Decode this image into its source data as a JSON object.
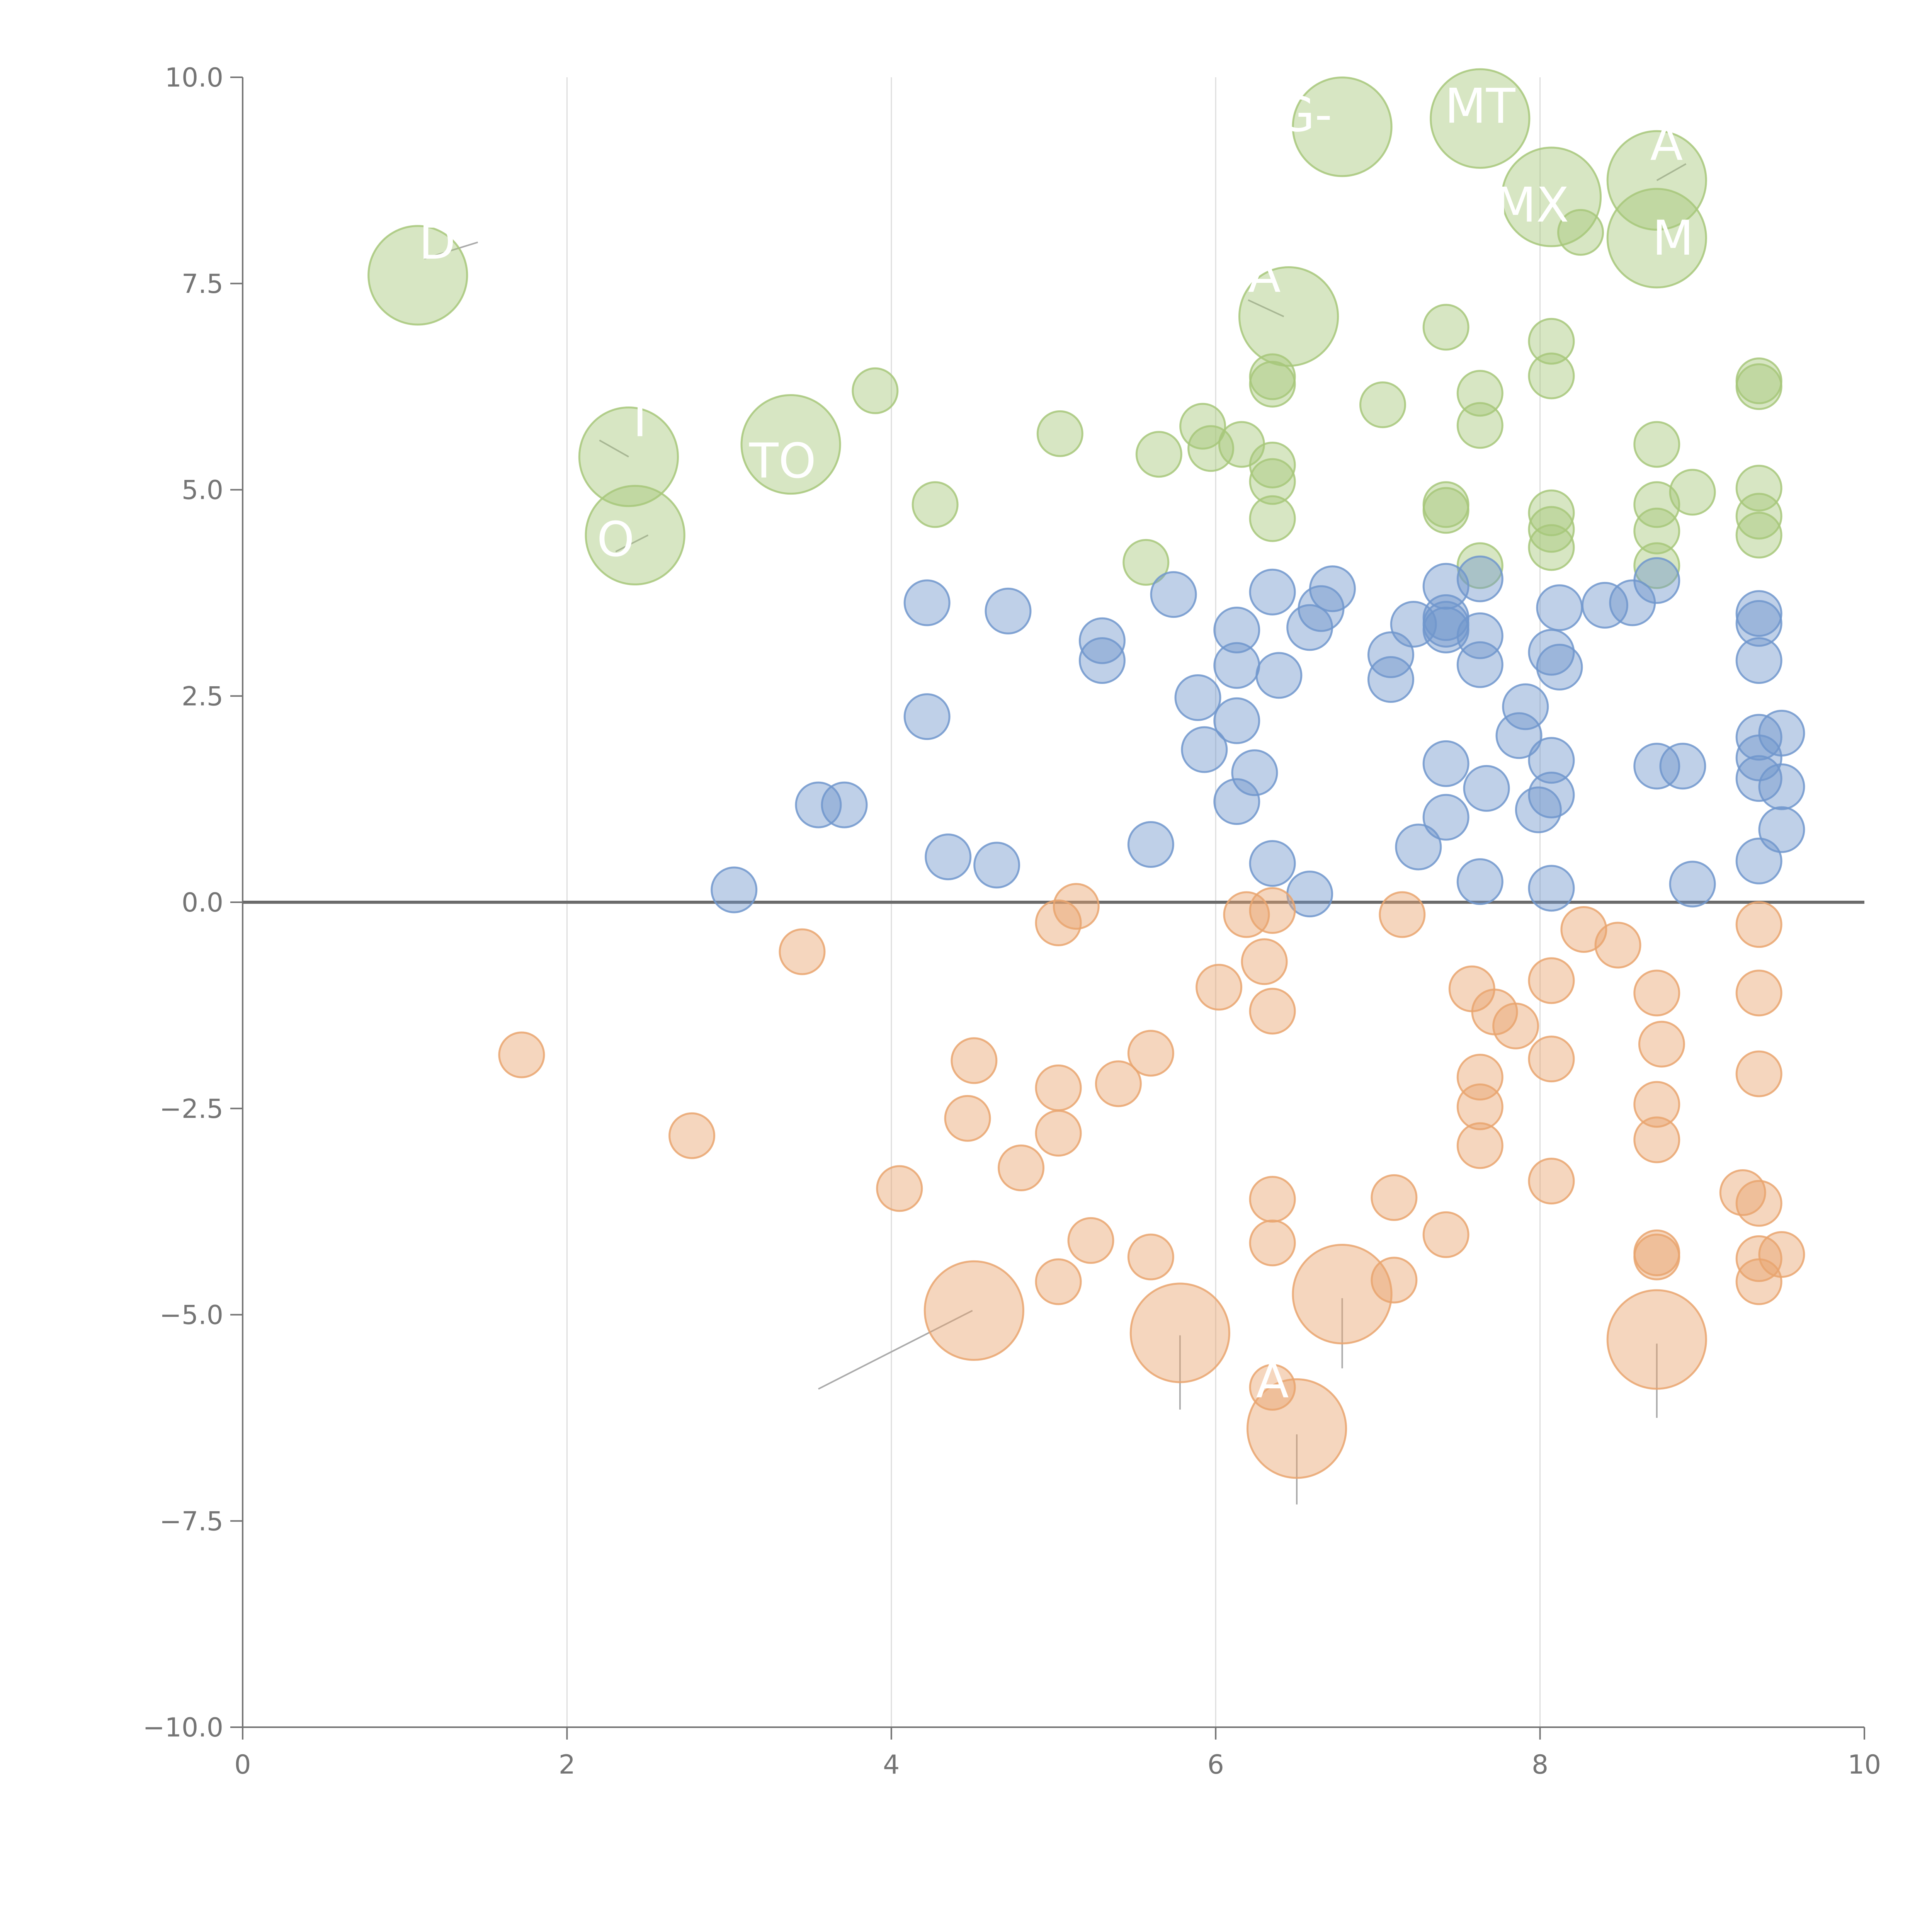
{
  "chart_data": {
    "type": "scatter",
    "title": "",
    "xlabel": "",
    "ylabel": "",
    "xlim": [
      0,
      10
    ],
    "ylim": [
      -10,
      10
    ],
    "xticks": [
      0,
      2,
      4,
      6,
      8,
      10
    ],
    "xtick_labels": [
      "0",
      "2",
      "4",
      "6",
      "8",
      "10"
    ],
    "yticks": [
      10,
      7.5,
      5,
      2.5,
      0,
      -2.5,
      -5,
      -7.5,
      -10
    ],
    "ytick_labels": [
      "10.0",
      "7.5",
      "5.0",
      "2.5",
      "0.0",
      "−2.5",
      "−5.0",
      "−7.5",
      "−10.0"
    ],
    "grid": "vertical",
    "baseline": 0,
    "colors": {
      "high": "#a7c77a",
      "mid": "#7096cc",
      "low": "#e9a46e",
      "grid": "#dddddd",
      "axis": "#757575",
      "baseline": "#6b6b6b",
      "leader": "#aaaaaa",
      "label": "#ffffff"
    },
    "series": [
      {
        "name": "high",
        "color": "#a7c77a",
        "points": [
          [
            1.08,
            7.6,
            2.2
          ],
          [
            2.38,
            5.4,
            2.2
          ],
          [
            2.42,
            4.45,
            2.2
          ],
          [
            3.38,
            5.55,
            2.2
          ],
          [
            6.45,
            7.1,
            2.2
          ],
          [
            6.78,
            9.4,
            2.2
          ],
          [
            7.63,
            9.5,
            2.2
          ],
          [
            8.07,
            8.55,
            2.2
          ],
          [
            8.72,
            8.75,
            2.2
          ],
          [
            8.72,
            8.05,
            2.2
          ],
          [
            3.9,
            6.2,
            1
          ],
          [
            4.27,
            4.82,
            1
          ],
          [
            5.04,
            5.68,
            1
          ],
          [
            5.57,
            4.12,
            1
          ],
          [
            5.65,
            5.43,
            1
          ],
          [
            5.92,
            5.77,
            1
          ],
          [
            5.97,
            5.5,
            1
          ],
          [
            6.16,
            5.55,
            1
          ],
          [
            6.35,
            6.37,
            1
          ],
          [
            6.35,
            6.28,
            1
          ],
          [
            6.35,
            5.3,
            1
          ],
          [
            6.35,
            5.1,
            1
          ],
          [
            6.35,
            4.65,
            1
          ],
          [
            7.03,
            6.03,
            1
          ],
          [
            7.42,
            6.97,
            1
          ],
          [
            7.42,
            4.82,
            1
          ],
          [
            7.42,
            4.75,
            1
          ],
          [
            7.63,
            6.17,
            1
          ],
          [
            7.63,
            5.78,
            1
          ],
          [
            7.63,
            4.08,
            1
          ],
          [
            8.07,
            6.8,
            1
          ],
          [
            8.07,
            6.38,
            1
          ],
          [
            8.07,
            4.72,
            1
          ],
          [
            8.07,
            4.52,
            1
          ],
          [
            8.07,
            4.3,
            1
          ],
          [
            8.25,
            8.12,
            1
          ],
          [
            8.72,
            5.55,
            1
          ],
          [
            8.72,
            4.82,
            1
          ],
          [
            8.72,
            4.5,
            1
          ],
          [
            8.72,
            4.08,
            1
          ],
          [
            8.94,
            4.97,
            1
          ],
          [
            9.35,
            6.32,
            1
          ],
          [
            9.35,
            6.25,
            1
          ],
          [
            9.35,
            5.02,
            1
          ],
          [
            9.35,
            4.68,
            1
          ],
          [
            9.35,
            4.45,
            1
          ]
        ]
      },
      {
        "name": "mid",
        "color": "#7096cc",
        "points": [
          [
            3.03,
            0.15,
            1
          ],
          [
            3.55,
            1.18,
            1
          ],
          [
            3.71,
            1.18,
            1
          ],
          [
            4.22,
            3.63,
            1
          ],
          [
            4.22,
            2.25,
            1
          ],
          [
            4.35,
            0.55,
            1
          ],
          [
            4.65,
            0.45,
            1
          ],
          [
            4.72,
            3.53,
            1
          ],
          [
            5.3,
            3.17,
            1
          ],
          [
            5.3,
            2.93,
            1
          ],
          [
            5.6,
            0.7,
            1
          ],
          [
            5.74,
            3.73,
            1
          ],
          [
            5.89,
            2.48,
            1
          ],
          [
            5.93,
            1.85,
            1
          ],
          [
            6.13,
            3.3,
            1
          ],
          [
            6.13,
            2.87,
            1
          ],
          [
            6.13,
            2.2,
            1
          ],
          [
            6.13,
            1.22,
            1
          ],
          [
            6.24,
            1.57,
            1
          ],
          [
            6.35,
            3.76,
            1
          ],
          [
            6.35,
            0.47,
            1
          ],
          [
            6.39,
            2.75,
            1
          ],
          [
            6.58,
            3.33,
            1
          ],
          [
            6.58,
            0.1,
            1
          ],
          [
            6.65,
            3.56,
            1
          ],
          [
            6.72,
            3.8,
            1
          ],
          [
            7.08,
            3.0,
            1
          ],
          [
            7.08,
            2.7,
            1
          ],
          [
            7.22,
            3.37,
            1
          ],
          [
            7.25,
            0.67,
            1
          ],
          [
            7.42,
            3.83,
            1
          ],
          [
            7.42,
            3.45,
            1
          ],
          [
            7.42,
            3.37,
            1
          ],
          [
            7.42,
            3.3,
            1
          ],
          [
            7.42,
            1.68,
            1
          ],
          [
            7.42,
            1.03,
            1
          ],
          [
            7.63,
            3.92,
            1
          ],
          [
            7.63,
            3.23,
            1
          ],
          [
            7.63,
            2.88,
            1
          ],
          [
            7.63,
            0.25,
            1
          ],
          [
            7.67,
            1.38,
            1
          ],
          [
            7.87,
            2.02,
            1
          ],
          [
            7.91,
            2.37,
            1
          ],
          [
            7.99,
            1.12,
            1
          ],
          [
            8.07,
            3.03,
            1
          ],
          [
            8.07,
            1.72,
            1
          ],
          [
            8.07,
            1.3,
            1
          ],
          [
            8.07,
            0.17,
            1
          ],
          [
            8.12,
            3.57,
            1
          ],
          [
            8.12,
            2.85,
            1
          ],
          [
            8.4,
            3.6,
            1
          ],
          [
            8.57,
            3.63,
            1
          ],
          [
            8.72,
            3.9,
            1
          ],
          [
            8.72,
            1.65,
            1
          ],
          [
            8.88,
            1.65,
            1
          ],
          [
            8.94,
            0.22,
            1
          ],
          [
            9.35,
            3.5,
            1
          ],
          [
            9.35,
            3.38,
            1
          ],
          [
            9.35,
            2.93,
            1
          ],
          [
            9.35,
            2.0,
            1
          ],
          [
            9.35,
            1.75,
            1
          ],
          [
            9.35,
            1.5,
            1
          ],
          [
            9.35,
            0.5,
            1
          ],
          [
            9.49,
            2.05,
            1
          ],
          [
            9.49,
            1.4,
            1
          ],
          [
            9.49,
            0.88,
            1
          ]
        ]
      },
      {
        "name": "low",
        "color": "#e9a46e",
        "points": [
          [
            1.72,
            -1.85,
            1
          ],
          [
            2.77,
            -2.83,
            1
          ],
          [
            3.45,
            -0.6,
            1
          ],
          [
            4.05,
            -3.47,
            1
          ],
          [
            4.47,
            -2.62,
            1
          ],
          [
            4.51,
            -1.92,
            1
          ],
          [
            4.8,
            -3.22,
            1
          ],
          [
            5.03,
            -0.25,
            1
          ],
          [
            5.03,
            -2.25,
            1
          ],
          [
            5.03,
            -2.8,
            1
          ],
          [
            5.03,
            -4.6,
            1
          ],
          [
            5.14,
            -0.05,
            1
          ],
          [
            5.23,
            -4.1,
            1
          ],
          [
            5.4,
            -2.2,
            1
          ],
          [
            5.6,
            -1.83,
            1
          ],
          [
            5.6,
            -4.3,
            1
          ],
          [
            6.02,
            -1.03,
            1
          ],
          [
            6.19,
            -0.15,
            1
          ],
          [
            6.3,
            -0.72,
            1
          ],
          [
            6.35,
            -0.1,
            1
          ],
          [
            6.35,
            -1.32,
            1
          ],
          [
            6.35,
            -3.6,
            1
          ],
          [
            6.35,
            -4.13,
            1
          ],
          [
            6.35,
            -5.88,
            1
          ],
          [
            7.1,
            -3.58,
            1
          ],
          [
            7.1,
            -4.58,
            1
          ],
          [
            7.15,
            -0.15,
            1
          ],
          [
            7.42,
            -4.03,
            1
          ],
          [
            7.58,
            -1.05,
            1
          ],
          [
            7.63,
            -2.12,
            1
          ],
          [
            7.63,
            -2.48,
            1
          ],
          [
            7.63,
            -2.95,
            1
          ],
          [
            7.72,
            -1.33,
            1
          ],
          [
            7.85,
            -1.5,
            1
          ],
          [
            8.07,
            -0.95,
            1
          ],
          [
            8.07,
            -1.9,
            1
          ],
          [
            8.07,
            -3.38,
            1
          ],
          [
            8.27,
            -0.33,
            1
          ],
          [
            8.48,
            -0.52,
            1
          ],
          [
            8.72,
            -1.1,
            1
          ],
          [
            8.72,
            -2.45,
            1
          ],
          [
            8.72,
            -2.88,
            1
          ],
          [
            8.72,
            -4.25,
            1
          ],
          [
            8.72,
            -4.3,
            1
          ],
          [
            8.75,
            -1.72,
            1
          ],
          [
            9.25,
            -3.52,
            1
          ],
          [
            9.35,
            -0.27,
            1
          ],
          [
            9.35,
            -1.1,
            1
          ],
          [
            9.35,
            -2.08,
            1
          ],
          [
            9.35,
            -3.65,
            1
          ],
          [
            9.35,
            -4.32,
            1
          ],
          [
            9.35,
            -4.6,
            1
          ],
          [
            9.49,
            -4.27,
            1
          ],
          [
            4.51,
            -4.95,
            2.2
          ],
          [
            5.78,
            -5.22,
            2.2
          ],
          [
            6.78,
            -4.75,
            2.2
          ],
          [
            8.72,
            -5.3,
            2.2
          ],
          [
            6.5,
            -6.38,
            2.2
          ]
        ]
      }
    ],
    "annotations": [
      {
        "text": "D",
        "x": 1.2,
        "y": 7.8
      },
      {
        "text": "T",
        "x": 2.45,
        "y": 5.65
      },
      {
        "text": "O",
        "x": 2.3,
        "y": 4.2
      },
      {
        "text": "TO",
        "x": 3.33,
        "y": 5.15
      },
      {
        "text": "A",
        "x": 6.3,
        "y": 7.4
      },
      {
        "text": "G-",
        "x": 6.55,
        "y": 9.35
      },
      {
        "text": "MT",
        "x": 7.63,
        "y": 9.45
      },
      {
        "text": "A",
        "x": 8.78,
        "y": 9.0
      },
      {
        "text": "MX",
        "x": 7.95,
        "y": 8.25
      },
      {
        "text": "M",
        "x": 8.82,
        "y": 7.85
      },
      {
        "text": "A",
        "x": 6.35,
        "y": -6.0
      }
    ],
    "leader_lines": [
      {
        "from": [
          4.5,
          -4.95
        ],
        "to": [
          3.55,
          -5.9
        ]
      },
      {
        "from": [
          5.78,
          -5.25
        ],
        "to": [
          5.78,
          -6.15
        ]
      },
      {
        "from": [
          6.78,
          -4.8
        ],
        "to": [
          6.78,
          -5.65
        ]
      },
      {
        "from": [
          8.72,
          -5.35
        ],
        "to": [
          8.72,
          -6.25
        ]
      },
      {
        "from": [
          6.5,
          -6.45
        ],
        "to": [
          6.5,
          -7.3
        ]
      },
      {
        "from": [
          1.12,
          7.8
        ],
        "to": [
          1.45,
          8.0
        ]
      },
      {
        "from": [
          2.38,
          5.4
        ],
        "to": [
          2.2,
          5.6
        ]
      },
      {
        "from": [
          2.5,
          4.45
        ],
        "to": [
          2.3,
          4.25
        ]
      },
      {
        "from": [
          6.42,
          7.1
        ],
        "to": [
          6.2,
          7.3
        ]
      },
      {
        "from": [
          8.72,
          8.75
        ],
        "to": [
          8.9,
          8.95
        ]
      }
    ]
  }
}
